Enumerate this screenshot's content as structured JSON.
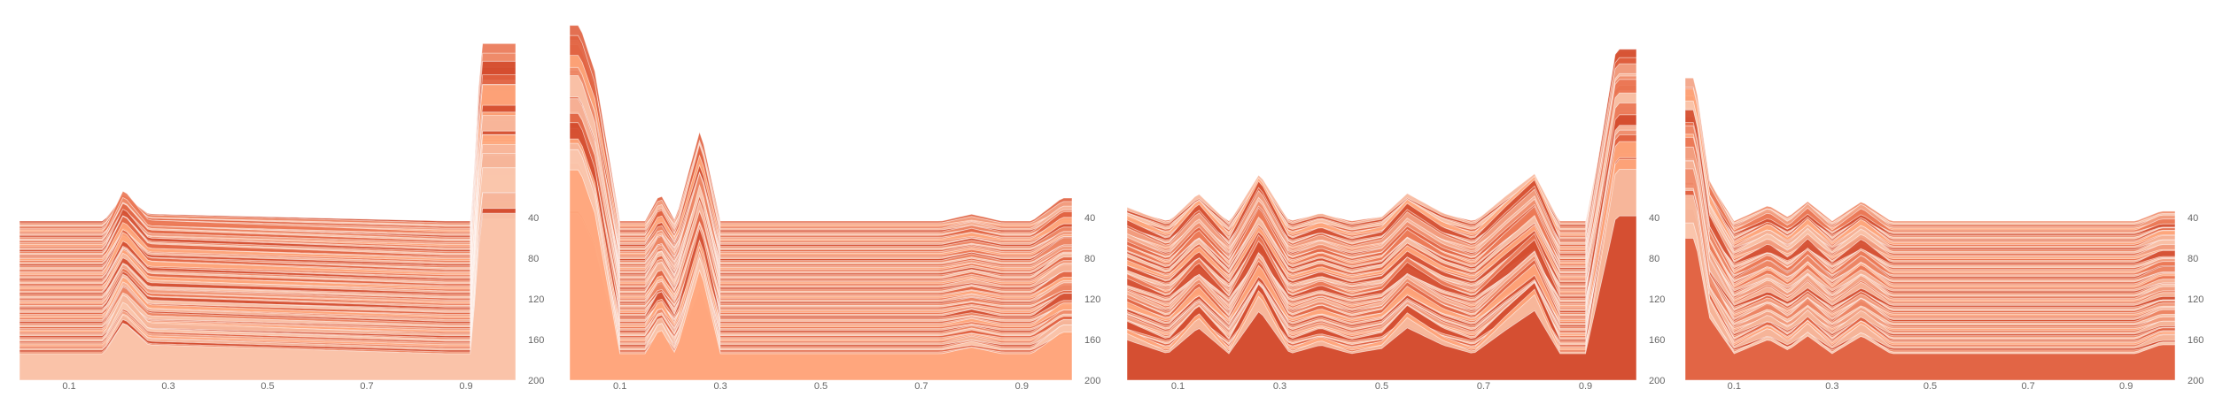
{
  "chart_data": [
    {
      "type": "area",
      "x_ticks": [
        "0.1",
        "0.3",
        "0.5",
        "0.7",
        "0.9"
      ],
      "y_ticks": [
        "40",
        "80",
        "120",
        "160",
        "200"
      ],
      "x_range": [
        0.0,
        1.0
      ],
      "y_range": [
        0,
        200
      ],
      "series_count": 75,
      "profile": {
        "x": [
          0.02,
          0.05,
          0.08,
          0.17,
          0.21,
          0.26,
          0.86,
          0.91,
          0.93,
          0.97
        ],
        "height": [
          0,
          0,
          0,
          0,
          18,
          5,
          0,
          0,
          80,
          80
        ]
      }
    },
    {
      "type": "area",
      "x_ticks": [
        "0.1",
        "0.3",
        "0.5",
        "0.7",
        "0.9"
      ],
      "y_ticks": [
        "40",
        "80",
        "120",
        "160",
        "200"
      ],
      "x_range": [
        0.0,
        1.0
      ],
      "y_range": [
        0,
        200
      ],
      "series_count": 75,
      "profile": {
        "x": [
          0.02,
          0.05,
          0.1,
          0.15,
          0.18,
          0.21,
          0.26,
          0.3,
          0.74,
          0.8,
          0.86,
          0.92,
          0.98
        ],
        "height": [
          85,
          65,
          0,
          0,
          12,
          0,
          40,
          0,
          0,
          3,
          0,
          0,
          10
        ]
      }
    },
    {
      "type": "area",
      "x_ticks": [
        "0.1",
        "0.3",
        "0.5",
        "0.7",
        "0.9"
      ],
      "y_ticks": [
        "40",
        "80",
        "120",
        "160",
        "200"
      ],
      "x_range": [
        0.0,
        1.0
      ],
      "y_range": [
        0,
        200
      ],
      "series_count": 75,
      "profile": {
        "x": [
          0.0,
          0.08,
          0.14,
          0.2,
          0.26,
          0.32,
          0.38,
          0.44,
          0.5,
          0.55,
          0.62,
          0.68,
          0.74,
          0.8,
          0.85,
          0.9,
          0.96,
          1.0
        ],
        "height": [
          8,
          0,
          15,
          0,
          25,
          0,
          5,
          0,
          3,
          15,
          5,
          0,
          13,
          25,
          0,
          0,
          80,
          80
        ]
      }
    },
    {
      "type": "area",
      "x_ticks": [
        "0.1",
        "0.3",
        "0.5",
        "0.7",
        "0.9"
      ],
      "y_ticks": [
        "40",
        "80",
        "120",
        "160",
        "200"
      ],
      "x_range": [
        0.0,
        1.0
      ],
      "y_range": [
        0,
        200
      ],
      "series_count": 75,
      "profile": {
        "x": [
          0.02,
          0.05,
          0.1,
          0.17,
          0.21,
          0.25,
          0.3,
          0.36,
          0.42,
          0.92,
          0.97
        ],
        "height": [
          65,
          20,
          0,
          8,
          2,
          10,
          0,
          10,
          0,
          0,
          5
        ]
      }
    }
  ]
}
